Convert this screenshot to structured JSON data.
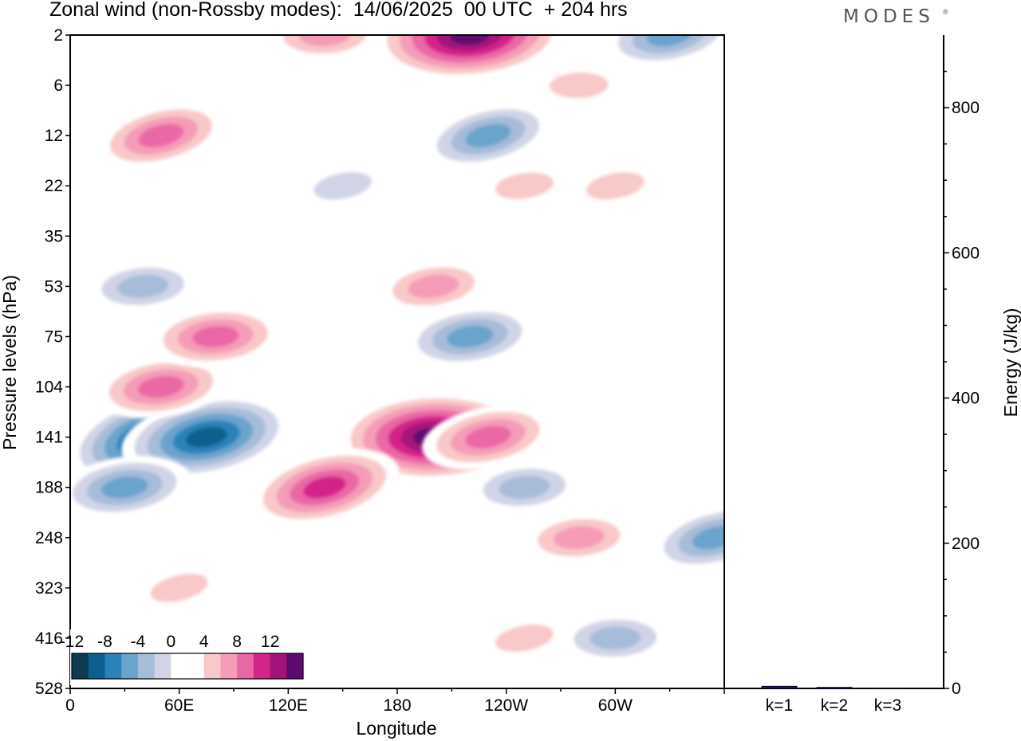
{
  "title": "Zonal wind (non-Rossby modes):  14/06/2025  00 UTC  + 204 hrs",
  "logo": "MODES",
  "logo_mark": "®",
  "colors": {
    "scale": [
      "#0e3a52",
      "#0c5f8e",
      "#2a82b9",
      "#6aa3cc",
      "#a6bcd9",
      "#d0d4e6",
      "#ffffff",
      "#ffffff",
      "#f9c8c8",
      "#f59cb8",
      "#ea67a6",
      "#d3248a",
      "#a3137a",
      "#5e0a6e"
    ],
    "bar": "#1a1a8c"
  },
  "chart_data": [
    {
      "type": "heatmap",
      "title": "Zonal wind (non-Rossby modes):  14/06/2025  00 UTC  + 204 hrs",
      "xlabel": "Longitude",
      "ylabel": "Pressure levels (hPa)",
      "x_ticks": [
        "0",
        "60E",
        "120E",
        "180",
        "120W",
        "60W"
      ],
      "y_ticks": [
        "2",
        "6",
        "12",
        "22",
        "35",
        "53",
        "75",
        "104",
        "141",
        "188",
        "248",
        "323",
        "416",
        "528"
      ],
      "colorbar_labels": [
        "-12",
        "-8",
        "-4",
        "0",
        "4",
        "8",
        "12"
      ],
      "colorbar_levels": [
        -14,
        -12,
        -10,
        -8,
        -6,
        -4,
        -2,
        0,
        2,
        4,
        6,
        8,
        10,
        12,
        14
      ],
      "features": [
        {
          "lon": 50,
          "level": "141",
          "value": -14
        },
        {
          "lon": 75,
          "level": "141",
          "value": -12
        },
        {
          "lon": 30,
          "level": "188",
          "value": -8
        },
        {
          "lon": 40,
          "level": "53",
          "value": -6
        },
        {
          "lon": 210,
          "level": "2",
          "value": -8
        },
        {
          "lon": 230,
          "level": "12",
          "value": -8
        },
        {
          "lon": 150,
          "level": "22",
          "value": -4
        },
        {
          "lon": 220,
          "level": "75",
          "value": -8
        },
        {
          "lon": 250,
          "level": "188",
          "value": -6
        },
        {
          "lon": 300,
          "level": "416",
          "value": -6
        },
        {
          "lon": 355,
          "level": "248",
          "value": -8
        },
        {
          "lon": 330,
          "level": "2",
          "value": -8
        },
        {
          "lon": 50,
          "level": "104",
          "value": 8
        },
        {
          "lon": 80,
          "level": "75",
          "value": 8
        },
        {
          "lon": 200,
          "level": "141",
          "value": 14
        },
        {
          "lon": 140,
          "level": "188",
          "value": 10
        },
        {
          "lon": 230,
          "level": "141",
          "value": 8
        },
        {
          "lon": 200,
          "level": "53",
          "value": 6
        },
        {
          "lon": 220,
          "level": "2",
          "value": 14
        },
        {
          "lon": 140,
          "level": "2",
          "value": 6
        },
        {
          "lon": 50,
          "level": "12",
          "value": 8
        },
        {
          "lon": 300,
          "level": "22",
          "value": 4
        },
        {
          "lon": 250,
          "level": "22",
          "value": 4
        },
        {
          "lon": 280,
          "level": "248",
          "value": 6
        },
        {
          "lon": 280,
          "level": "6",
          "value": 4
        },
        {
          "lon": 60,
          "level": "323",
          "value": 4
        },
        {
          "lon": 250,
          "level": "416",
          "value": 4
        }
      ]
    },
    {
      "type": "bar",
      "categories": [
        "k=1",
        "k=2",
        "k=3"
      ],
      "values": [
        3,
        1.5,
        0.5
      ],
      "ylabel": "Energy (J/kg)",
      "ylim": [
        0,
        900
      ],
      "y_ticks": [
        0,
        200,
        400,
        600,
        800
      ]
    }
  ]
}
